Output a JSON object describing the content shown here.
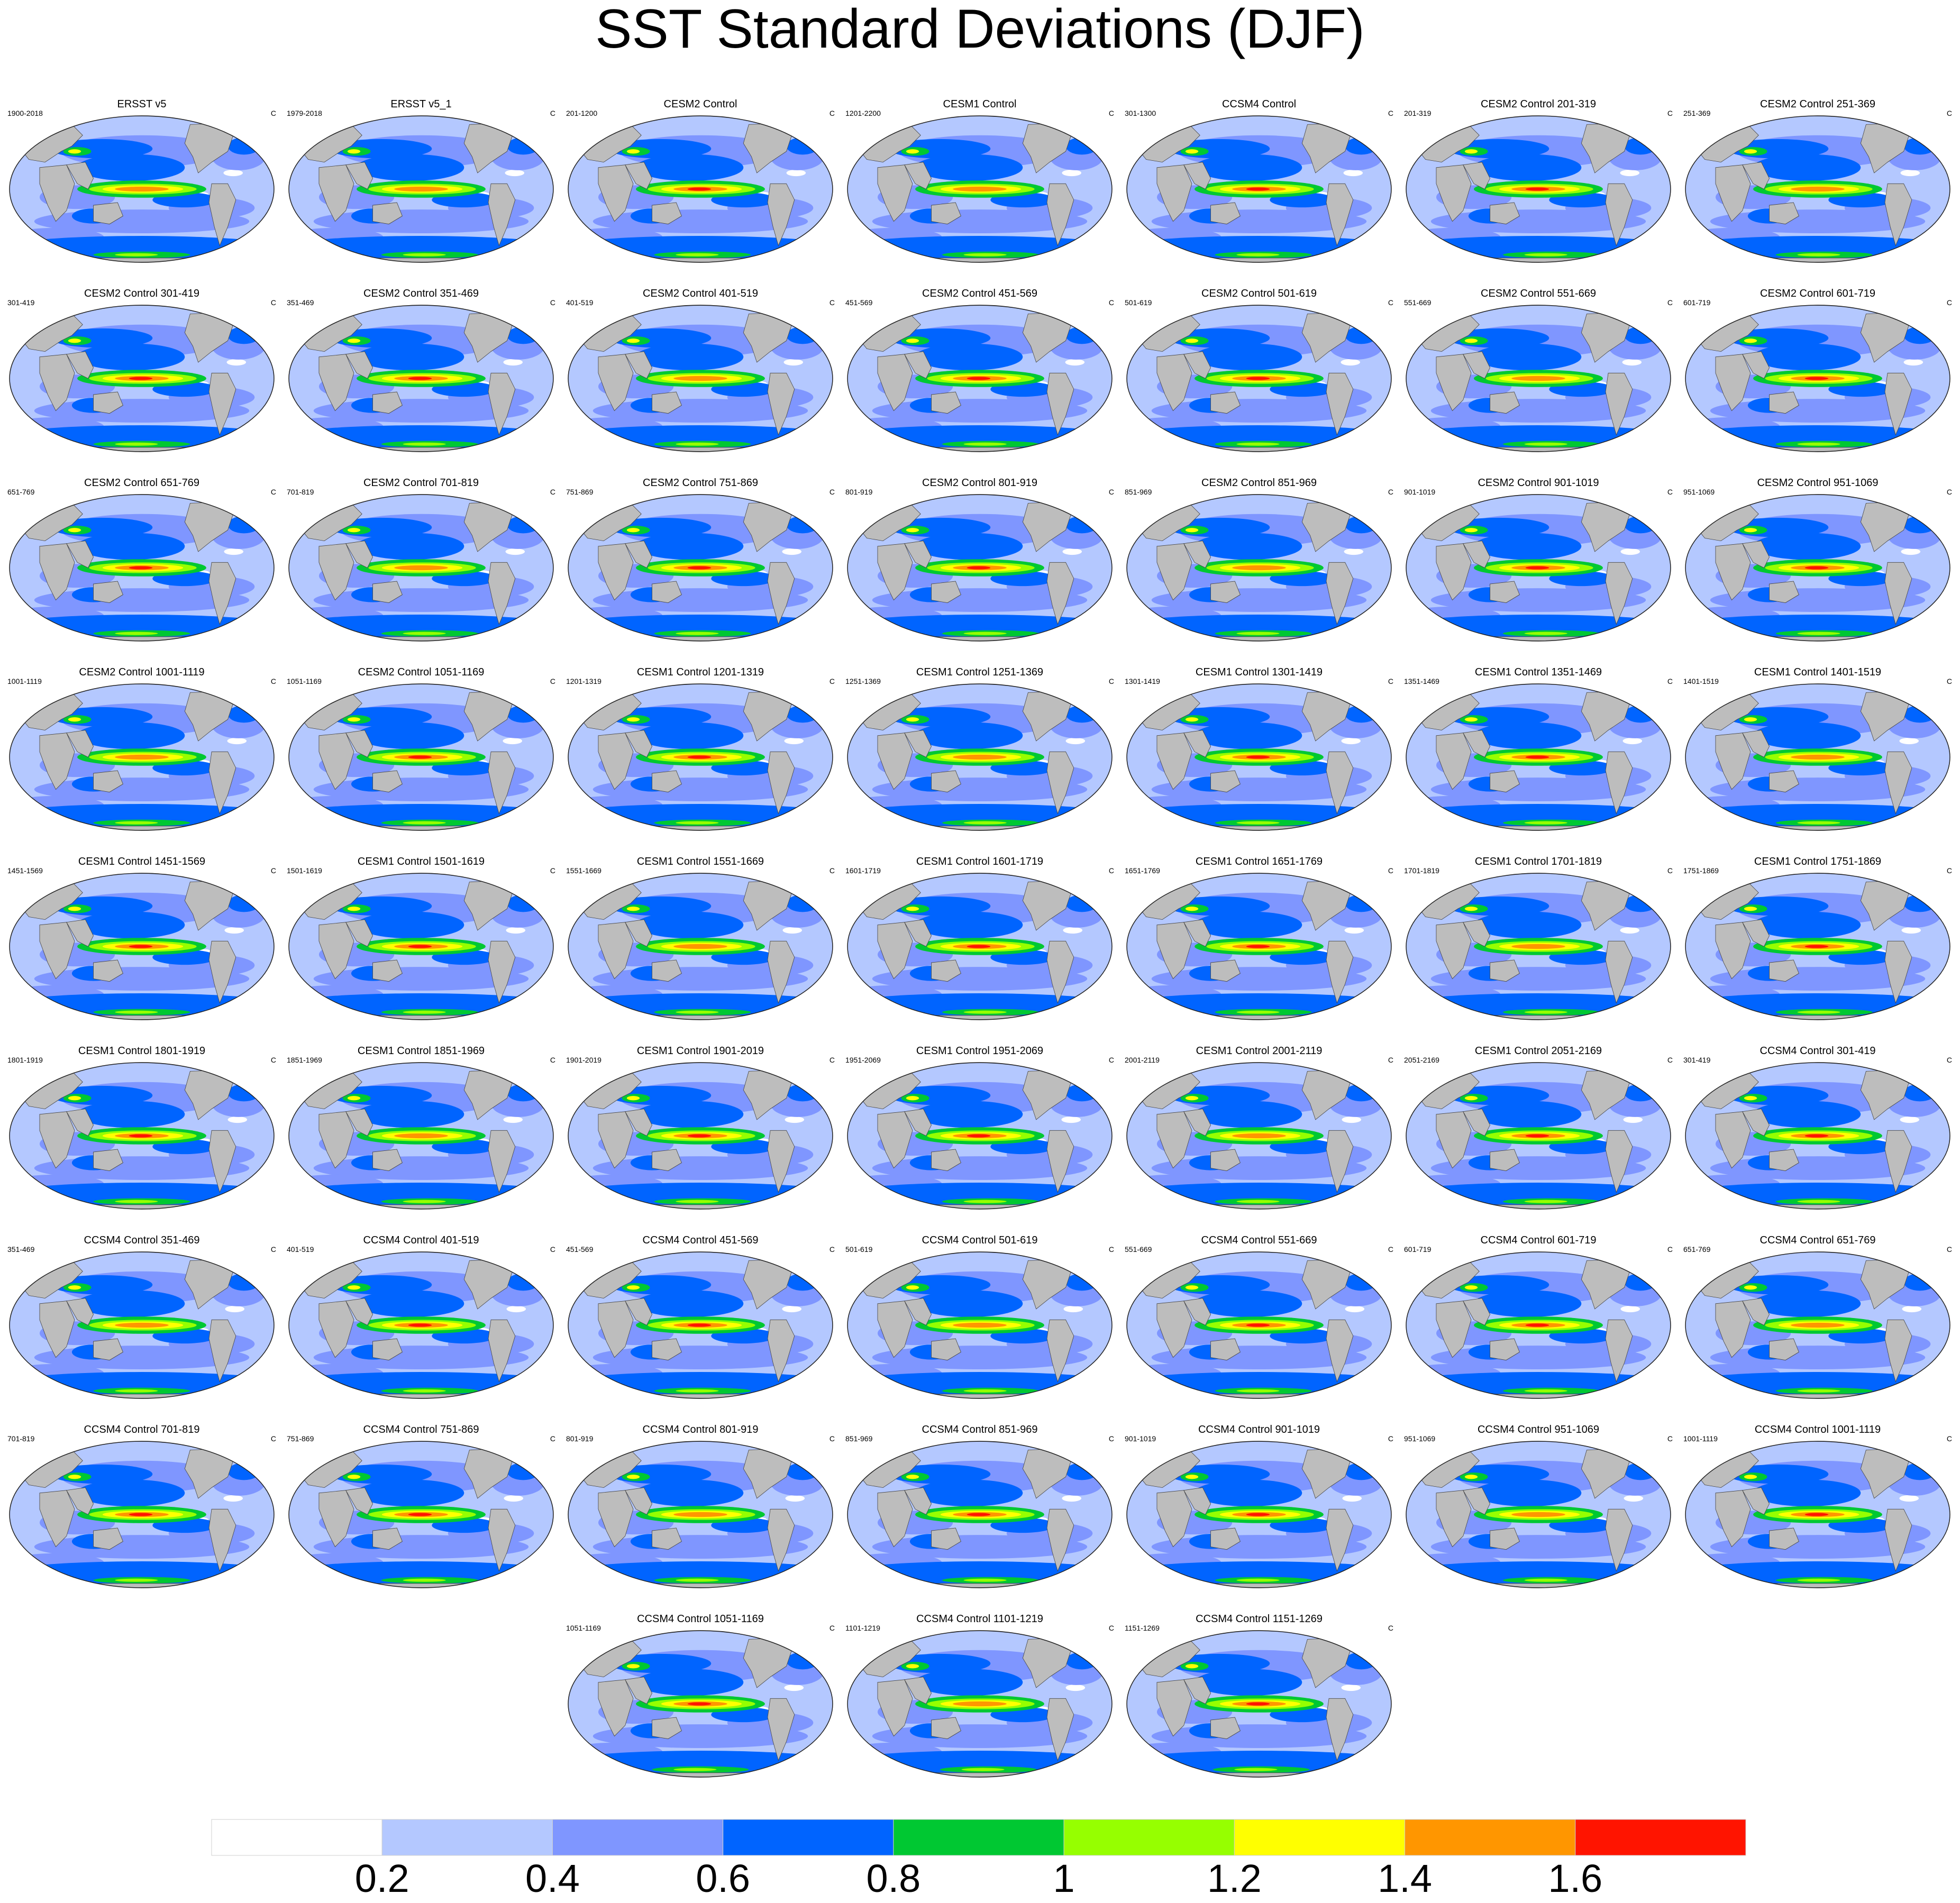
{
  "title": "SST Standard Deviations (DJF)",
  "panels": [
    {
      "title": "ERSST v5",
      "left": "1900-2018",
      "right": "C"
    },
    {
      "title": "ERSST v5_1",
      "left": "1979-2018",
      "right": "C"
    },
    {
      "title": "CESM2 Control",
      "left": "201-1200",
      "right": "C"
    },
    {
      "title": "CESM1 Control",
      "left": "1201-2200",
      "right": "C"
    },
    {
      "title": "CCSM4 Control",
      "left": "301-1300",
      "right": "C"
    },
    {
      "title": "CESM2 Control 201-319",
      "left": "201-319",
      "right": "C"
    },
    {
      "title": "CESM2 Control 251-369",
      "left": "251-369",
      "right": "C"
    },
    {
      "title": "CESM2 Control 301-419",
      "left": "301-419",
      "right": "C"
    },
    {
      "title": "CESM2 Control 351-469",
      "left": "351-469",
      "right": "C"
    },
    {
      "title": "CESM2 Control 401-519",
      "left": "401-519",
      "right": "C"
    },
    {
      "title": "CESM2 Control 451-569",
      "left": "451-569",
      "right": "C"
    },
    {
      "title": "CESM2 Control 501-619",
      "left": "501-619",
      "right": "C"
    },
    {
      "title": "CESM2 Control 551-669",
      "left": "551-669",
      "right": "C"
    },
    {
      "title": "CESM2 Control 601-719",
      "left": "601-719",
      "right": "C"
    },
    {
      "title": "CESM2 Control 651-769",
      "left": "651-769",
      "right": "C"
    },
    {
      "title": "CESM2 Control 701-819",
      "left": "701-819",
      "right": "C"
    },
    {
      "title": "CESM2 Control 751-869",
      "left": "751-869",
      "right": "C"
    },
    {
      "title": "CESM2 Control 801-919",
      "left": "801-919",
      "right": "C"
    },
    {
      "title": "CESM2 Control 851-969",
      "left": "851-969",
      "right": "C"
    },
    {
      "title": "CESM2 Control 901-1019",
      "left": "901-1019",
      "right": "C"
    },
    {
      "title": "CESM2 Control 951-1069",
      "left": "951-1069",
      "right": "C"
    },
    {
      "title": "CESM2 Control 1001-1119",
      "left": "1001-1119",
      "right": "C"
    },
    {
      "title": "CESM2 Control 1051-1169",
      "left": "1051-1169",
      "right": "C"
    },
    {
      "title": "CESM1 Control 1201-1319",
      "left": "1201-1319",
      "right": "C"
    },
    {
      "title": "CESM1 Control 1251-1369",
      "left": "1251-1369",
      "right": "C"
    },
    {
      "title": "CESM1 Control 1301-1419",
      "left": "1301-1419",
      "right": "C"
    },
    {
      "title": "CESM1 Control 1351-1469",
      "left": "1351-1469",
      "right": "C"
    },
    {
      "title": "CESM1 Control 1401-1519",
      "left": "1401-1519",
      "right": "C"
    },
    {
      "title": "CESM1 Control 1451-1569",
      "left": "1451-1569",
      "right": "C"
    },
    {
      "title": "CESM1 Control 1501-1619",
      "left": "1501-1619",
      "right": "C"
    },
    {
      "title": "CESM1 Control 1551-1669",
      "left": "1551-1669",
      "right": "C"
    },
    {
      "title": "CESM1 Control 1601-1719",
      "left": "1601-1719",
      "right": "C"
    },
    {
      "title": "CESM1 Control 1651-1769",
      "left": "1651-1769",
      "right": "C"
    },
    {
      "title": "CESM1 Control 1701-1819",
      "left": "1701-1819",
      "right": "C"
    },
    {
      "title": "CESM1 Control 1751-1869",
      "left": "1751-1869",
      "right": "C"
    },
    {
      "title": "CESM1 Control 1801-1919",
      "left": "1801-1919",
      "right": "C"
    },
    {
      "title": "CESM1 Control 1851-1969",
      "left": "1851-1969",
      "right": "C"
    },
    {
      "title": "CESM1 Control 1901-2019",
      "left": "1901-2019",
      "right": "C"
    },
    {
      "title": "CESM1 Control 1951-2069",
      "left": "1951-2069",
      "right": "C"
    },
    {
      "title": "CESM1 Control 2001-2119",
      "left": "2001-2119",
      "right": "C"
    },
    {
      "title": "CESM1 Control 2051-2169",
      "left": "2051-2169",
      "right": "C"
    },
    {
      "title": "CCSM4 Control 301-419",
      "left": "301-419",
      "right": "C"
    },
    {
      "title": "CCSM4 Control 351-469",
      "left": "351-469",
      "right": "C"
    },
    {
      "title": "CCSM4 Control 401-519",
      "left": "401-519",
      "right": "C"
    },
    {
      "title": "CCSM4 Control 451-569",
      "left": "451-569",
      "right": "C"
    },
    {
      "title": "CCSM4 Control 501-619",
      "left": "501-619",
      "right": "C"
    },
    {
      "title": "CCSM4 Control 551-669",
      "left": "551-669",
      "right": "C"
    },
    {
      "title": "CCSM4 Control 601-719",
      "left": "601-719",
      "right": "C"
    },
    {
      "title": "CCSM4 Control 651-769",
      "left": "651-769",
      "right": "C"
    },
    {
      "title": "CCSM4 Control 701-819",
      "left": "701-819",
      "right": "C"
    },
    {
      "title": "CCSM4 Control 751-869",
      "left": "751-869",
      "right": "C"
    },
    {
      "title": "CCSM4 Control 801-919",
      "left": "801-919",
      "right": "C"
    },
    {
      "title": "CCSM4 Control 851-969",
      "left": "851-969",
      "right": "C"
    },
    {
      "title": "CCSM4 Control 901-1019",
      "left": "901-1019",
      "right": "C"
    },
    {
      "title": "CCSM4 Control 951-1069",
      "left": "951-1069",
      "right": "C"
    },
    {
      "title": "CCSM4 Control 1001-1119",
      "left": "1001-1119",
      "right": "C"
    },
    {
      "title": "CCSM4 Control 1051-1169",
      "left": "1051-1169",
      "right": "C"
    },
    {
      "title": "CCSM4 Control 1101-1219",
      "left": "1101-1219",
      "right": "C"
    },
    {
      "title": "CCSM4 Control 1151-1269",
      "left": "1151-1269",
      "right": "C"
    }
  ],
  "colorbar": {
    "colors": [
      "#ffffff",
      "#b4c8ff",
      "#7f96ff",
      "#0064ff",
      "#00c832",
      "#96ff00",
      "#ffff00",
      "#ff9600",
      "#ff1400"
    ],
    "tick_labels": [
      "0.2",
      "0.4",
      "0.6",
      "0.8",
      "1",
      "1.2",
      "1.4",
      "1.6"
    ]
  },
  "map_colors": {
    "land": "#bdbdbd",
    "ocean_base": "#b4c8ff",
    "coast": "#444444"
  }
}
